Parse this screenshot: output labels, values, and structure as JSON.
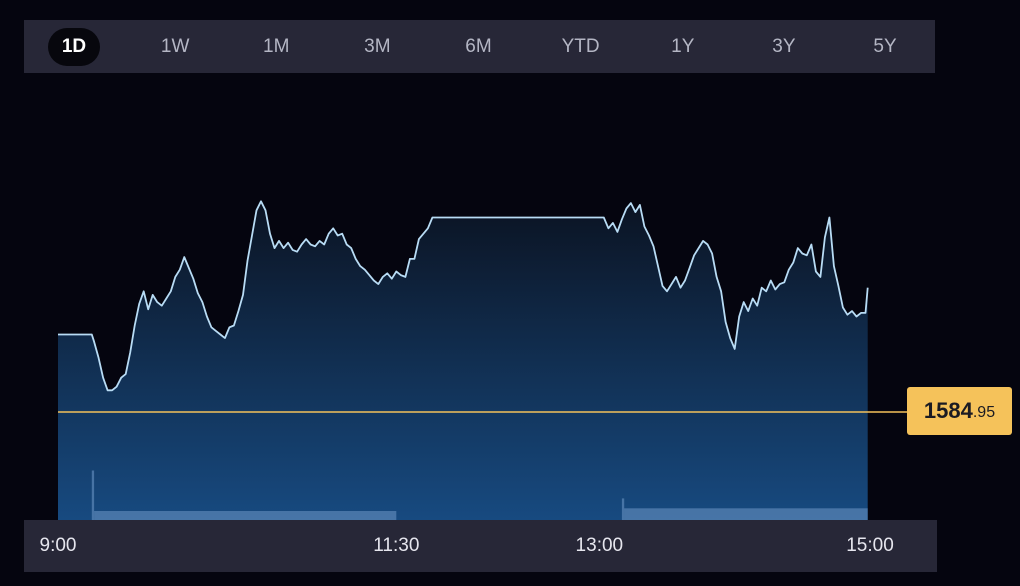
{
  "range_tabs": [
    {
      "label": "1D",
      "active": true
    },
    {
      "label": "1W",
      "active": false
    },
    {
      "label": "1M",
      "active": false
    },
    {
      "label": "3M",
      "active": false
    },
    {
      "label": "6M",
      "active": false
    },
    {
      "label": "YTD",
      "active": false
    },
    {
      "label": "1Y",
      "active": false
    },
    {
      "label": "3Y",
      "active": false
    },
    {
      "label": "5Y",
      "active": false
    }
  ],
  "price_tag": {
    "main": "1584",
    "decimals": ".95"
  },
  "colors": {
    "background": "#05050f",
    "panel": "#272737",
    "line": "#b8dcf5",
    "area_top": "#0b1322",
    "area_bottom": "#174a80",
    "volume": "#5c87b8",
    "reference_line": "#f5c25a",
    "price_tag": "#f5c25a"
  },
  "chart_data": {
    "type": "line",
    "x_ticks": [
      "9:00",
      "11:30",
      "13:00",
      "15:00"
    ],
    "x_tick_minutes": [
      0,
      150,
      240,
      360
    ],
    "xlim_minutes": [
      0,
      360
    ],
    "reference_price": 1584.95,
    "series": [
      {
        "minutes": [
          0,
          15,
          16,
          18,
          20,
          22,
          24,
          26,
          28,
          30,
          32,
          34,
          36,
          38,
          40,
          42,
          44,
          46,
          48,
          50,
          52,
          54,
          56,
          58,
          60,
          62,
          64,
          66,
          68,
          70,
          72,
          74,
          76,
          78,
          80,
          82,
          84,
          86,
          88,
          90,
          92,
          94,
          96,
          98,
          100,
          102,
          104,
          106,
          108,
          110,
          112,
          114,
          116,
          118,
          120,
          122,
          124,
          126,
          128,
          130,
          132,
          134,
          136,
          138,
          140,
          142,
          144,
          146,
          148,
          150,
          152,
          154,
          156,
          158,
          160,
          162,
          164,
          166,
          168,
          170,
          172,
          174,
          176,
          178,
          180,
          182,
          184,
          186,
          188,
          190,
          192,
          194,
          196,
          198,
          200,
          202,
          204,
          206,
          208,
          210,
          212,
          214,
          216,
          218,
          220,
          222,
          224,
          226,
          228,
          230,
          232,
          234,
          236,
          238,
          240,
          242,
          244,
          246,
          248,
          250,
          252,
          254,
          256,
          258,
          260,
          262,
          264,
          266,
          268,
          270,
          272,
          274,
          276,
          278,
          280,
          282,
          284,
          286,
          288,
          290,
          292,
          294,
          296,
          298,
          300,
          302,
          304,
          306,
          308,
          310,
          312,
          314,
          316,
          318,
          320,
          322,
          324,
          326,
          328,
          330,
          332,
          334,
          336,
          338,
          340,
          342,
          344,
          346,
          348,
          350,
          352,
          354,
          356,
          358,
          359
        ],
        "values": [
          1628,
          1628,
          1624,
          1615,
          1604,
          1597,
          1597,
          1599,
          1604,
          1606,
          1618,
          1633,
          1645,
          1652,
          1642,
          1650,
          1646,
          1644,
          1648,
          1652,
          1660,
          1664,
          1671,
          1665,
          1659,
          1651,
          1646,
          1638,
          1632,
          1630,
          1628,
          1626,
          1632,
          1633,
          1641,
          1650,
          1669,
          1683,
          1697,
          1702,
          1697,
          1684,
          1676,
          1680,
          1676,
          1679,
          1675,
          1674,
          1678,
          1681,
          1678,
          1677,
          1680,
          1678,
          1684,
          1687,
          1683,
          1684,
          1678,
          1676,
          1670,
          1666,
          1664,
          1661,
          1658,
          1656,
          1660,
          1662,
          1659,
          1663,
          1661,
          1660,
          1670,
          1670,
          1681,
          1684,
          1687,
          1693,
          1693,
          1693,
          1693,
          1693,
          1693,
          1693,
          1693,
          1693,
          1693,
          1693,
          1693,
          1693,
          1693,
          1693,
          1693,
          1693,
          1693,
          1693,
          1693,
          1693,
          1693,
          1693,
          1693,
          1693,
          1693,
          1693,
          1693,
          1693,
          1693,
          1693,
          1693,
          1693,
          1693,
          1693,
          1693,
          1693,
          1693,
          1693,
          1687,
          1690,
          1685,
          1692,
          1698,
          1701,
          1696,
          1700,
          1688,
          1683,
          1677,
          1666,
          1655,
          1652,
          1656,
          1660,
          1654,
          1658,
          1665,
          1672,
          1676,
          1680,
          1678,
          1673,
          1660,
          1652,
          1635,
          1626,
          1620,
          1638,
          1646,
          1641,
          1648,
          1644,
          1654,
          1652,
          1658,
          1653,
          1656,
          1657,
          1664,
          1668,
          1676,
          1673,
          1672,
          1678,
          1663,
          1660,
          1682,
          1693,
          1666,
          1655,
          1643,
          1639,
          1641,
          1638,
          1640,
          1640,
          1654,
          1667
        ]
      }
    ],
    "volume": [
      {
        "from": 0,
        "to": 15,
        "value": 0
      },
      {
        "from": 15,
        "to": 16,
        "value": 55
      },
      {
        "from": 16,
        "to": 150,
        "value": 10
      },
      {
        "from": 150,
        "to": 250,
        "value": 0
      },
      {
        "from": 250,
        "to": 251,
        "value": 24
      },
      {
        "from": 251,
        "to": 359,
        "value": 13
      }
    ]
  }
}
